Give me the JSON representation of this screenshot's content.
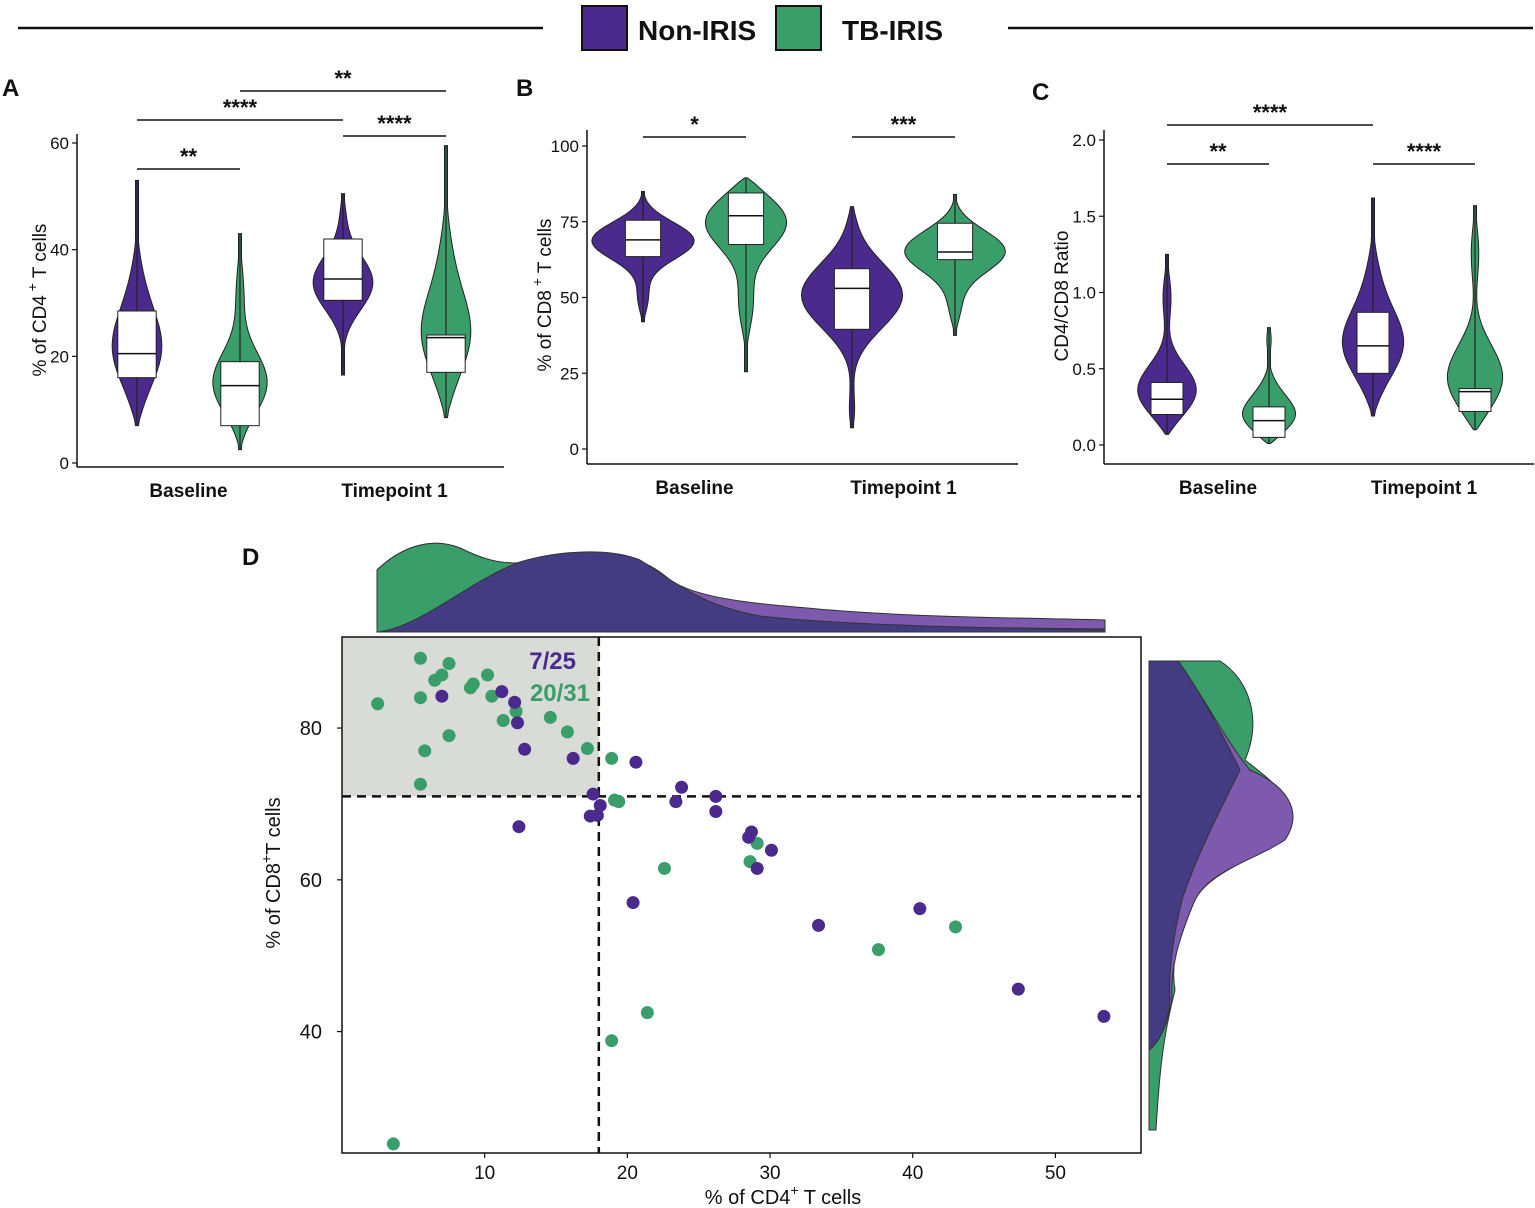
{
  "legend": {
    "items": [
      {
        "name": "Non-IRIS",
        "color": "#4a2a8c"
      },
      {
        "name": "TB-IRIS",
        "color": "#3a9e6a"
      }
    ]
  },
  "panels": {
    "A": {
      "letter": "A"
    },
    "B": {
      "letter": "B"
    },
    "C": {
      "letter": "C"
    },
    "D": {
      "letter": "D"
    }
  },
  "chart_data": [
    {
      "id": "A",
      "type": "violin",
      "ylabel_main": "% of CD4",
      "ylabel_sup": "+",
      "ylabel_tail": "T cells",
      "ylim": [
        0,
        60
      ],
      "yticks": [
        0,
        20,
        40,
        60
      ],
      "categories": [
        "Baseline",
        "Timepoint 1"
      ],
      "series": [
        {
          "name": "Non-IRIS",
          "groups": [
            {
              "category": "Baseline",
              "min": 7,
              "max": 53,
              "q1": 16,
              "median": 20.5,
              "q3": 28.5
            },
            {
              "category": "Timepoint 1",
              "min": 16.5,
              "max": 50.5,
              "q1": 30.5,
              "median": 34.5,
              "q3": 42
            }
          ]
        },
        {
          "name": "TB-IRIS",
          "groups": [
            {
              "category": "Baseline",
              "min": 2.5,
              "max": 43,
              "q1": 7,
              "median": 14.5,
              "q3": 19
            },
            {
              "category": "Timepoint 1",
              "min": 8.5,
              "max": 59.5,
              "q1": 17,
              "median": 23.5,
              "q3": 24
            }
          ]
        }
      ],
      "significance": [
        {
          "label": "**",
          "from": "Baseline Non-IRIS",
          "to": "Baseline TB-IRIS"
        },
        {
          "label": "****",
          "from": "Baseline Non-IRIS",
          "to": "Timepoint 1 Non-IRIS"
        },
        {
          "label": "****",
          "from": "Timepoint 1 Non-IRIS",
          "to": "Timepoint 1 TB-IRIS"
        },
        {
          "label": "**",
          "from": "Baseline TB-IRIS",
          "to": "Timepoint 1 TB-IRIS"
        }
      ]
    },
    {
      "id": "B",
      "type": "violin",
      "ylabel_main": "% of CD8",
      "ylabel_sup": "+",
      "ylabel_tail": "T cells",
      "ylim": [
        0,
        100
      ],
      "yticks": [
        0,
        25,
        50,
        75,
        100
      ],
      "categories": [
        "Baseline",
        "Timepoint 1"
      ],
      "series": [
        {
          "name": "Non-IRIS",
          "groups": [
            {
              "category": "Baseline",
              "min": 42,
              "max": 85,
              "q1": 63.5,
              "median": 69,
              "q3": 75.5
            },
            {
              "category": "Timepoint 1",
              "min": 7,
              "max": 80,
              "q1": 39.5,
              "median": 53,
              "q3": 59.5
            }
          ]
        },
        {
          "name": "TB-IRIS",
          "groups": [
            {
              "category": "Baseline",
              "min": 25.5,
              "max": 89.5,
              "q1": 67.5,
              "median": 77,
              "q3": 84.5
            },
            {
              "category": "Timepoint 1",
              "min": 37.5,
              "max": 84,
              "q1": 62.5,
              "median": 65,
              "q3": 74.5
            }
          ]
        }
      ],
      "significance": [
        {
          "label": "*",
          "from": "Baseline Non-IRIS",
          "to": "Baseline TB-IRIS"
        },
        {
          "label": "***",
          "from": "Timepoint 1 Non-IRIS",
          "to": "Timepoint 1 TB-IRIS"
        }
      ]
    },
    {
      "id": "C",
      "type": "violin",
      "ylabel_main": "CD4/CD8 Ratio",
      "ylabel_sup": "",
      "ylabel_tail": "",
      "ylim": [
        0,
        2.0
      ],
      "yticks": [
        0.0,
        0.5,
        1.0,
        1.5,
        2.0
      ],
      "ytick_labels": [
        "0.0",
        "0.5",
        "1.0",
        "1.5",
        "2.0"
      ],
      "categories": [
        "Baseline",
        "Timepoint 1"
      ],
      "series": [
        {
          "name": "Non-IRIS",
          "groups": [
            {
              "category": "Baseline",
              "min": 0.07,
              "max": 1.25,
              "q1": 0.2,
              "median": 0.3,
              "q3": 0.41
            },
            {
              "category": "Timepoint 1",
              "min": 0.19,
              "max": 1.62,
              "q1": 0.47,
              "median": 0.65,
              "q3": 0.87
            }
          ]
        },
        {
          "name": "TB-IRIS",
          "groups": [
            {
              "category": "Baseline",
              "min": 0.01,
              "max": 0.77,
              "q1": 0.05,
              "median": 0.16,
              "q3": 0.25
            },
            {
              "category": "Timepoint 1",
              "min": 0.1,
              "max": 1.57,
              "q1": 0.22,
              "median": 0.35,
              "q3": 0.37
            }
          ]
        }
      ],
      "significance": [
        {
          "label": "**",
          "from": "Baseline Non-IRIS",
          "to": "Baseline TB-IRIS"
        },
        {
          "label": "****",
          "from": "Baseline Non-IRIS",
          "to": "Timepoint 1 Non-IRIS"
        },
        {
          "label": "****",
          "from": "Timepoint 1 Non-IRIS",
          "to": "Timepoint 1 TB-IRIS"
        }
      ]
    },
    {
      "id": "D",
      "type": "scatter",
      "xlabel_main": "% of CD4",
      "xlabel_sup": "+",
      "xlabel_tail": " T cells",
      "ylabel_main": "% of CD8",
      "ylabel_sup": "+",
      "ylabel_tail": "T cells",
      "xlim": [
        0,
        56
      ],
      "ylim": [
        24,
        92
      ],
      "xticks": [
        10,
        20,
        30,
        40,
        50
      ],
      "yticks": [
        40,
        60,
        80
      ],
      "thresholds": {
        "x": 18,
        "y": 71
      },
      "quadrant_counts": [
        {
          "group": "Non-IRIS",
          "text": "7/25"
        },
        {
          "group": "TB-IRIS",
          "text": "20/31"
        }
      ],
      "series": [
        {
          "name": "TB-IRIS",
          "points": [
            [
              2.5,
              83.2
            ],
            [
              5.5,
              89.2
            ],
            [
              5.5,
              84
            ],
            [
              5.5,
              72.6
            ],
            [
              5.8,
              77
            ],
            [
              6.5,
              86.3
            ],
            [
              7,
              87
            ],
            [
              7.5,
              88.5
            ],
            [
              7.5,
              79
            ],
            [
              9,
              85.3
            ],
            [
              9.2,
              85.8
            ],
            [
              10.2,
              87
            ],
            [
              10.5,
              84.2
            ],
            [
              11.3,
              81
            ],
            [
              12.2,
              82.2
            ],
            [
              14.6,
              81.4
            ],
            [
              15.8,
              79.5
            ],
            [
              17.2,
              77.3
            ],
            [
              18.9,
              76
            ],
            [
              19.1,
              70.5
            ],
            [
              19.4,
              70.3
            ],
            [
              22.6,
              61.5
            ],
            [
              28.6,
              62.4
            ],
            [
              29.1,
              64.8
            ],
            [
              37.6,
              50.8
            ],
            [
              43,
              53.8
            ],
            [
              21.4,
              42.5
            ],
            [
              18.9,
              38.8
            ],
            [
              3.6,
              25.2
            ]
          ]
        },
        {
          "name": "Non-IRIS",
          "points": [
            [
              7,
              84.2
            ],
            [
              11.2,
              84.8
            ],
            [
              12.1,
              83.4
            ],
            [
              12.3,
              80.7
            ],
            [
              12.8,
              77.2
            ],
            [
              16.2,
              76
            ],
            [
              17.6,
              71.3
            ],
            [
              18.1,
              69.8
            ],
            [
              17.4,
              68.4
            ],
            [
              17.9,
              68.5
            ],
            [
              20.6,
              75.5
            ],
            [
              23.4,
              70.3
            ],
            [
              23.8,
              72.2
            ],
            [
              26.2,
              71
            ],
            [
              26.2,
              69
            ],
            [
              28.5,
              65.6
            ],
            [
              28.7,
              66.3
            ],
            [
              29.1,
              61.5
            ],
            [
              30.1,
              63.9
            ],
            [
              12.4,
              67
            ],
            [
              20.4,
              57
            ],
            [
              33.4,
              54
            ],
            [
              40.5,
              56.2
            ],
            [
              47.4,
              45.6
            ],
            [
              53.4,
              42
            ]
          ]
        }
      ]
    }
  ]
}
